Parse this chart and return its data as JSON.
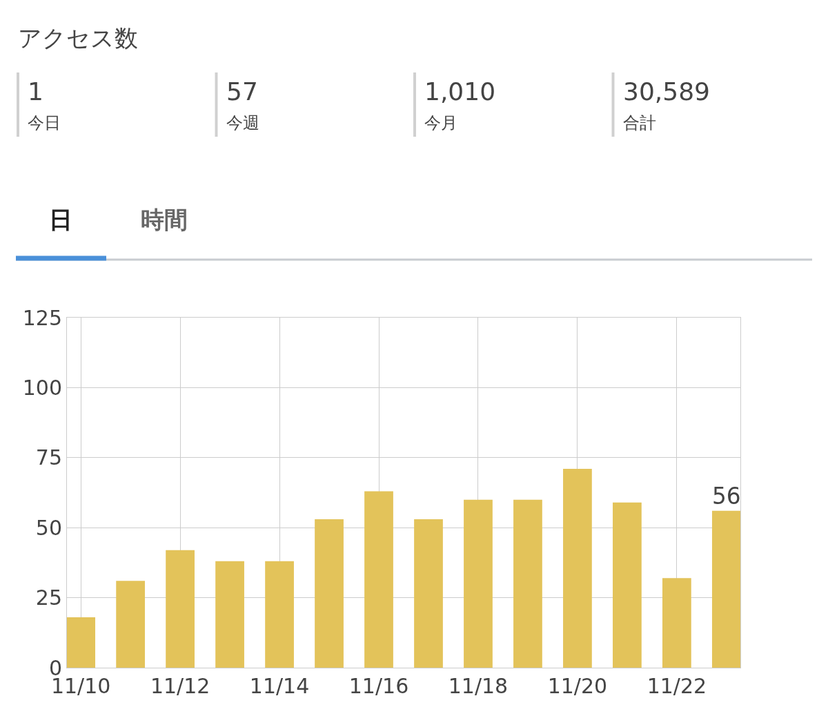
{
  "chart_data": [
    {
      "type": "other",
      "title": "アクセス数",
      "categories": [
        "今日",
        "今週",
        "今月",
        "合計"
      ],
      "values": [
        1,
        57,
        1010,
        30589
      ],
      "value_labels": [
        "1",
        "57",
        "1,010",
        "30,589"
      ],
      "annotations": [
        "日",
        "時間"
      ]
    },
    {
      "type": "bar",
      "categories": [
        "11/10",
        null,
        "11/12",
        null,
        "11/14",
        null,
        "11/16",
        null,
        "11/18",
        null,
        "11/20",
        null,
        "11/22",
        null
      ],
      "values": [
        18,
        31,
        42,
        38,
        38,
        53,
        63,
        53,
        60,
        60,
        71,
        59,
        32,
        56
      ],
      "value_labels": [
        null,
        null,
        null,
        null,
        null,
        null,
        null,
        null,
        null,
        null,
        null,
        null,
        null,
        "56"
      ],
      "color": "#e3c35a",
      "ylim": [
        0,
        125
      ],
      "yticks": [
        0,
        25,
        50,
        75,
        100,
        125
      ],
      "grid": true
    }
  ]
}
